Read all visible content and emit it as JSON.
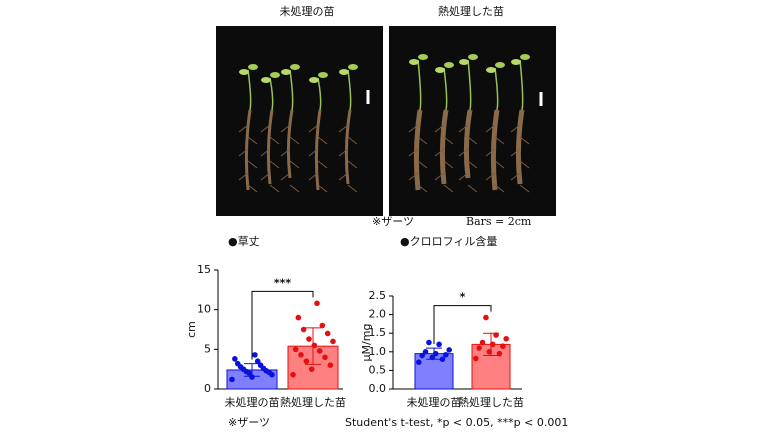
{
  "photo_labels": [
    "未処理の苗",
    "熱処理した苗"
  ],
  "photo_note": "※ザーツ",
  "scale_bar_label": "Bars = 2cm",
  "chart_data": [
    {
      "type": "bar",
      "title": "●草丈",
      "ylabel": "cm",
      "categories": [
        "未処理の苗",
        "熱処理した苗"
      ],
      "values": [
        2.4,
        5.4
      ],
      "errors": [
        0.8,
        2.3
      ],
      "points": [
        [
          1.2,
          1.5,
          1.8,
          2.0,
          2.1,
          2.2,
          2.3,
          2.5,
          2.6,
          2.8,
          3.0,
          3.2,
          3.5,
          3.8,
          4.3
        ],
        [
          1.8,
          2.5,
          3.0,
          3.5,
          4.0,
          4.3,
          4.8,
          5.0,
          5.5,
          6.0,
          6.3,
          7.0,
          7.5,
          8.0,
          9.0,
          10.8
        ]
      ],
      "colors": [
        "#8080ff",
        "#ff8080"
      ],
      "point_colors": [
        "#0a14d8",
        "#e41010"
      ],
      "significance": "***",
      "ylim": [
        0,
        15
      ],
      "yticks": [
        0,
        5,
        10,
        15
      ]
    },
    {
      "type": "bar",
      "title": "●クロロフィル含量",
      "ylabel": "μM/mg",
      "categories": [
        "未処理の苗",
        "熱処理した苗"
      ],
      "values": [
        0.95,
        1.2
      ],
      "errors": [
        0.15,
        0.3
      ],
      "points": [
        [
          0.72,
          0.8,
          0.85,
          0.9,
          0.92,
          0.95,
          1.0,
          1.05,
          1.2,
          1.25
        ],
        [
          0.82,
          0.95,
          1.0,
          1.1,
          1.15,
          1.2,
          1.25,
          1.35,
          1.45,
          1.92
        ]
      ],
      "colors": [
        "#8080ff",
        "#ff8080"
      ],
      "point_colors": [
        "#0a14d8",
        "#e41010"
      ],
      "significance": "*",
      "ylim": [
        0,
        2.5
      ],
      "yticks": [
        {
          "value": 0,
          "label": "0.0"
        },
        0.5,
        {
          "value": 1,
          "label": "1.0"
        },
        1.5,
        {
          "value": 2,
          "label": "2.0"
        },
        2.5
      ]
    }
  ],
  "footnote_left": "※ザーツ",
  "footnote_right": "Student's t-test, *p < 0.05, ***p < 0.001"
}
